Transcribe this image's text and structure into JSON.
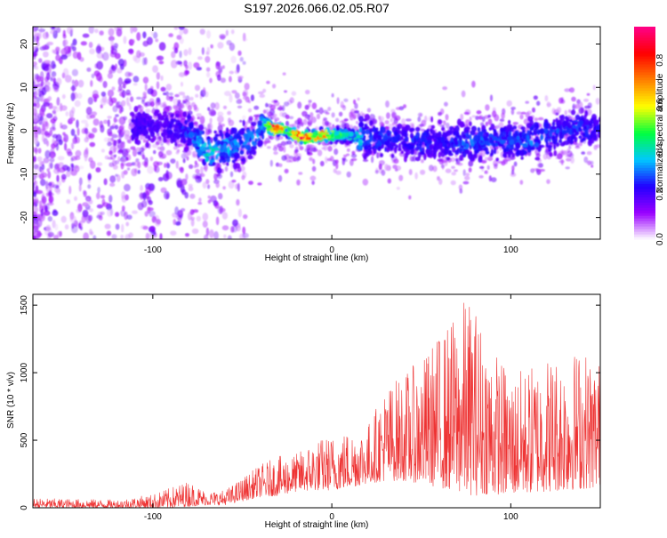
{
  "title": "S197.2026.066.02.05.R07",
  "colors": {
    "axis": "#000000",
    "snr_line": "#ee3333",
    "colorbar": [
      "#ffffff",
      "#9a00ff",
      "#2200ff",
      "#00c8ff",
      "#00ff40",
      "#ffff00",
      "#ff8000",
      "#ff0000",
      "#ff0088"
    ]
  },
  "chart_data": [
    {
      "type": "heatmap",
      "name": "spectrogram",
      "title": "S197.2026.066.02.05.R07",
      "xlabel": "Height of straight line (km)",
      "ylabel": "Frequency (Hz)",
      "xlim": [
        -167,
        150
      ],
      "ylim": [
        -25,
        24
      ],
      "x_ticks": [
        -100,
        0,
        100
      ],
      "x_tick_labels": [
        "-100",
        "0",
        "100"
      ],
      "y_ticks": [
        -20,
        -10,
        0,
        10,
        20
      ],
      "y_tick_labels": [
        "-20",
        "-10",
        "0",
        "10",
        "20"
      ],
      "colorbar": {
        "label": "Normalized spectral amplitude",
        "range": [
          0.0,
          0.95
        ],
        "ticks": [
          0.0,
          0.2,
          0.4,
          0.6,
          0.8
        ],
        "tick_labels": [
          "0.0",
          "0.2",
          "0.4",
          "0.6",
          "0.8"
        ]
      },
      "ridge": {
        "x": [
          -112,
          -95,
          -80,
          -70,
          -60,
          -50,
          -42,
          -38,
          -34,
          -30,
          -25,
          -20,
          -15,
          -10,
          -5,
          0,
          5,
          10,
          15,
          20,
          30,
          40,
          50,
          60,
          70,
          80,
          90,
          100,
          110,
          120,
          130,
          140,
          150
        ],
        "frequency": [
          0.5,
          1.0,
          0.0,
          -5.0,
          -4.0,
          -3.0,
          -1.0,
          2.0,
          0.5,
          0.5,
          0.0,
          -1.0,
          -1.5,
          -1.5,
          -1.0,
          -1.0,
          -1.0,
          -1.0,
          -1.5,
          -2.0,
          -2.0,
          -2.0,
          -2.5,
          -2.5,
          -2.5,
          -2.5,
          -2.5,
          -2.5,
          -2.0,
          -1.0,
          0.0,
          0.5,
          0.0
        ],
        "peak_amplitude": [
          0.25,
          0.2,
          0.3,
          0.45,
          0.4,
          0.35,
          0.35,
          0.4,
          0.9,
          0.85,
          0.5,
          0.9,
          0.95,
          0.6,
          0.9,
          0.55,
          0.5,
          0.45,
          0.45,
          0.3,
          0.3,
          0.25,
          0.3,
          0.25,
          0.3,
          0.35,
          0.3,
          0.3,
          0.35,
          0.3,
          0.3,
          0.3,
          0.25
        ]
      }
    },
    {
      "type": "line",
      "name": "snr",
      "xlabel": "Height of straight line (km)",
      "ylabel": "SNR (10 * v/v)",
      "xlim": [
        -167,
        150
      ],
      "ylim": [
        0,
        1580
      ],
      "x_ticks": [
        -100,
        0,
        100
      ],
      "x_tick_labels": [
        "-100",
        "0",
        "100"
      ],
      "y_ticks": [
        0,
        500,
        1000,
        1500
      ],
      "y_tick_labels": [
        "0",
        "500",
        "1000",
        "1500"
      ],
      "envelope_x": [
        -167,
        -120,
        -100,
        -90,
        -80,
        -70,
        -60,
        -50,
        -40,
        -30,
        -20,
        -10,
        0,
        10,
        20,
        30,
        40,
        50,
        60,
        70,
        75,
        80,
        85,
        90,
        100,
        110,
        120,
        130,
        140,
        150
      ],
      "envelope_min": [
        0,
        0,
        0,
        0,
        10,
        20,
        20,
        50,
        80,
        90,
        120,
        130,
        130,
        150,
        180,
        200,
        200,
        180,
        150,
        120,
        100,
        90,
        100,
        100,
        100,
        110,
        120,
        130,
        140,
        150
      ],
      "envelope_max": [
        70,
        60,
        100,
        150,
        200,
        120,
        130,
        220,
        320,
        380,
        400,
        500,
        540,
        580,
        620,
        900,
        1000,
        1100,
        1300,
        1450,
        1580,
        1500,
        1350,
        1200,
        1000,
        1050,
        1150,
        1150,
        1200,
        1100
      ]
    }
  ]
}
